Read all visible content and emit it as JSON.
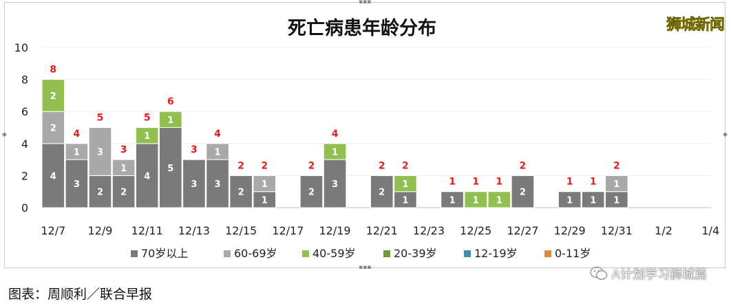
{
  "brand": "狮城新闻",
  "caption": "图表：周顺利／联合早报",
  "wechat_label": "A计划学习狮城篇",
  "colors": {
    "70+": "#7a7a7a",
    "60-69": "#a9a9a9",
    "40-59": "#92c050",
    "20-39": "#6f9a3a",
    "12-19": "#3f8fa8",
    "0-11": "#d98b4a",
    "total_label": "#e02020"
  },
  "chart_data": {
    "type": "bar",
    "stacked": true,
    "title": "死亡病患年龄分布",
    "ylim": [
      0,
      10
    ],
    "yticks": [
      0,
      2,
      4,
      6,
      8,
      10
    ],
    "grid": true,
    "legend_position": "bottom",
    "x_tick_labels": [
      "12/7",
      "12/9",
      "12/11",
      "12/13",
      "12/15",
      "12/17",
      "12/19",
      "12/21",
      "12/23",
      "12/25",
      "12/27",
      "12/29",
      "12/31",
      "1/2",
      "1/4"
    ],
    "categories": [
      "12/7",
      "12/8",
      "12/9",
      "12/10",
      "12/11",
      "12/12",
      "12/13",
      "12/14",
      "12/15",
      "12/16",
      "12/17",
      "12/18",
      "12/19",
      "12/20",
      "12/21",
      "12/22",
      "12/23",
      "12/24",
      "12/25",
      "12/26",
      "12/27",
      "12/28",
      "12/29",
      "12/30",
      "12/31",
      "1/1",
      "1/2",
      "1/3",
      "1/4"
    ],
    "series": [
      {
        "name": "70岁以上",
        "key": "70+",
        "values": [
          4,
          3,
          2,
          2,
          4,
          5,
          3,
          3,
          2,
          1,
          0,
          2,
          3,
          0,
          2,
          1,
          0,
          1,
          0,
          0,
          2,
          0,
          1,
          1,
          1,
          0,
          0,
          0,
          0
        ]
      },
      {
        "name": "60-69岁",
        "key": "60-69",
        "values": [
          2,
          1,
          3,
          1,
          0,
          0,
          0,
          1,
          0,
          1,
          0,
          0,
          0,
          0,
          0,
          0,
          0,
          0,
          0,
          0,
          0,
          0,
          0,
          0,
          1,
          0,
          0,
          0,
          0
        ]
      },
      {
        "name": "40-59岁",
        "key": "40-59",
        "values": [
          2,
          0,
          0,
          0,
          1,
          1,
          0,
          0,
          0,
          0,
          0,
          0,
          1,
          0,
          0,
          1,
          0,
          0,
          1,
          1,
          0,
          0,
          0,
          0,
          0,
          0,
          0,
          0,
          0
        ]
      },
      {
        "name": "20-39岁",
        "key": "20-39",
        "values": [
          0,
          0,
          0,
          0,
          0,
          0,
          0,
          0,
          0,
          0,
          0,
          0,
          0,
          0,
          0,
          0,
          0,
          0,
          0,
          0,
          0,
          0,
          0,
          0,
          0,
          0,
          0,
          0,
          0
        ]
      },
      {
        "name": "12-19岁",
        "key": "12-19",
        "values": [
          0,
          0,
          0,
          0,
          0,
          0,
          0,
          0,
          0,
          0,
          0,
          0,
          0,
          0,
          0,
          0,
          0,
          0,
          0,
          0,
          0,
          0,
          0,
          0,
          0,
          0,
          0,
          0,
          0
        ]
      },
      {
        "name": "0-11岁",
        "key": "0-11",
        "values": [
          0,
          0,
          0,
          0,
          0,
          0,
          0,
          0,
          0,
          0,
          0,
          0,
          0,
          0,
          0,
          0,
          0,
          0,
          0,
          0,
          0,
          0,
          0,
          0,
          0,
          0,
          0,
          0,
          0
        ]
      }
    ],
    "totals": [
      8,
      4,
      5,
      3,
      5,
      6,
      3,
      4,
      2,
      2,
      0,
      2,
      4,
      0,
      2,
      2,
      0,
      1,
      1,
      1,
      2,
      0,
      1,
      1,
      2,
      0,
      0,
      0,
      0
    ]
  }
}
